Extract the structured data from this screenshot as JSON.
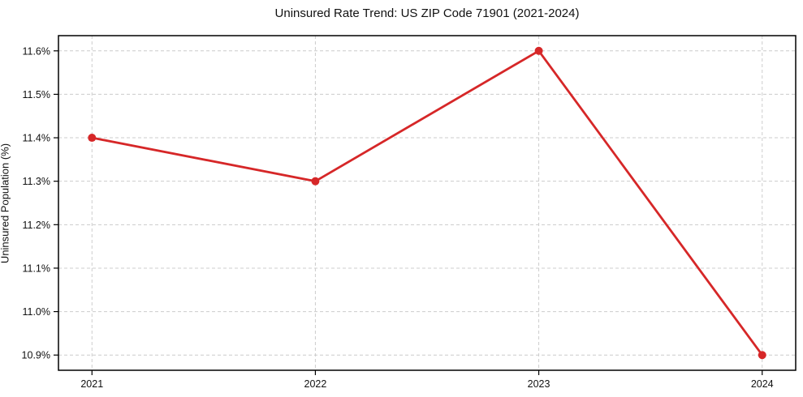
{
  "page": {
    "background_color": "#ffffff"
  },
  "chart_data": {
    "type": "line",
    "title": "Uninsured Rate Trend: US ZIP Code 71901 (2021-2024)",
    "xlabel": "",
    "ylabel": "Uninsured Population (%)",
    "x": [
      2021,
      2022,
      2023,
      2024
    ],
    "series": [
      {
        "name": "uninsured-rate",
        "values": [
          11.4,
          11.3,
          11.6,
          10.9
        ],
        "color": "#d62728",
        "marker": "circle",
        "line_width": 2.8,
        "marker_radius": 5
      }
    ],
    "xticks": {
      "values": [
        2021,
        2022,
        2023,
        2024
      ],
      "labels": [
        "2021",
        "2022",
        "2023",
        "2024"
      ]
    },
    "yticks": {
      "values": [
        10.9,
        11.0,
        11.1,
        11.2,
        11.3,
        11.4,
        11.5,
        11.6
      ],
      "labels": [
        "10.9%",
        "11.0%",
        "11.1%",
        "11.2%",
        "11.3%",
        "11.4%",
        "11.5%",
        "11.6%"
      ]
    },
    "xlim": [
      2020.85,
      2024.15
    ],
    "ylim": [
      10.865,
      11.635
    ],
    "grid": true,
    "grid_color": "#cccccc",
    "grid_dash": "4,3",
    "axis_color": "#000000",
    "tick_color": "#000000",
    "legend": "none"
  }
}
